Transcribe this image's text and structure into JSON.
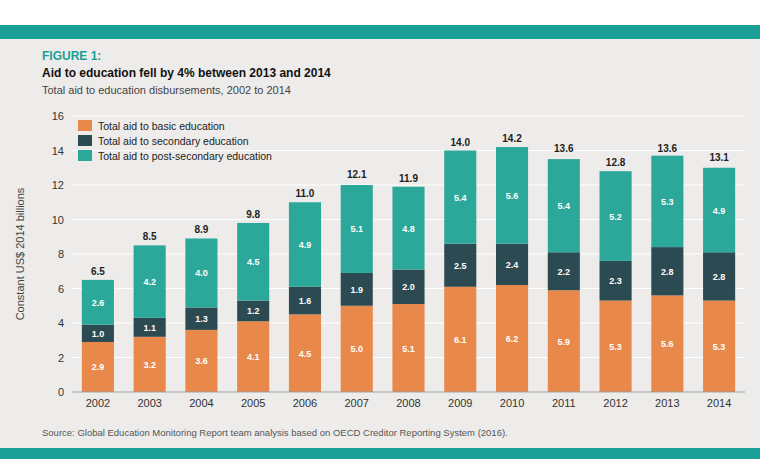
{
  "chart_data": {
    "type": "bar",
    "stacked": true,
    "title": "Aid to education fell by 4% between 2013 and 2014",
    "subtitle": "Total aid to education disbursements, 2002 to 2014",
    "annotations": [
      "FIGURE 1:",
      "Source: Global Education Monitoring Report team analysis based on OECD Creditor Reporting System (2016)."
    ],
    "ylabel": "Constant US$ 2014 billions",
    "categories": [
      "2002",
      "2003",
      "2004",
      "2005",
      "2006",
      "2007",
      "2008",
      "2009",
      "2010",
      "2011",
      "2012",
      "2013",
      "2014"
    ],
    "series": [
      {
        "name": "Total aid to basic education",
        "color": "#E8884A",
        "values": [
          2.9,
          3.2,
          3.6,
          4.1,
          4.5,
          5.0,
          5.1,
          6.1,
          6.2,
          5.9,
          5.3,
          5.6,
          5.3
        ],
        "value_labels": [
          "2.9",
          "3.2",
          "3.6",
          "4.1",
          "4.5",
          "5.0",
          "5.1",
          "6.1",
          "6.2",
          "5.9",
          "5.3",
          "5.6",
          "5.3"
        ]
      },
      {
        "name": "Total aid to secondary education",
        "color": "#2C4A52",
        "values": [
          1.0,
          1.1,
          1.3,
          1.2,
          1.6,
          1.9,
          2.0,
          2.5,
          2.4,
          2.2,
          2.3,
          2.8,
          2.8
        ],
        "value_labels": [
          "1.0",
          "1.1",
          "1.3",
          "1.2",
          "1.6",
          "1.9",
          "2.0",
          "2.5",
          "2.4",
          "2.2",
          "2.3",
          "2.8",
          "2.8"
        ]
      },
      {
        "name": "Total aid to post-secondary education",
        "color": "#2BA899",
        "values": [
          2.6,
          4.2,
          4.0,
          4.5,
          4.9,
          5.1,
          4.8,
          5.4,
          5.6,
          5.4,
          5.2,
          5.3,
          4.9
        ],
        "value_labels": [
          "2.6",
          "4.2",
          "4.0",
          "4.5",
          "4.9",
          "5.1",
          "4.8",
          "5.4",
          "5.6",
          "5.4",
          "5.2",
          "5.3",
          "4.9"
        ]
      }
    ],
    "totals": [
      6.5,
      8.5,
      8.9,
      9.8,
      11.0,
      12.1,
      11.9,
      14.0,
      14.2,
      13.6,
      12.8,
      13.6,
      13.1
    ],
    "total_labels": [
      "6.5",
      "8.5",
      "8.9",
      "9.8",
      "11.0",
      "12.1",
      "11.9",
      "14.0",
      "14.2",
      "13.6",
      "12.8",
      "13.6",
      "13.1"
    ],
    "ylim": [
      0,
      16
    ],
    "yticks": [
      0,
      2,
      4,
      6,
      8,
      10,
      12,
      14,
      16
    ],
    "grid": true,
    "legend": "upper left",
    "data_labels": true
  }
}
